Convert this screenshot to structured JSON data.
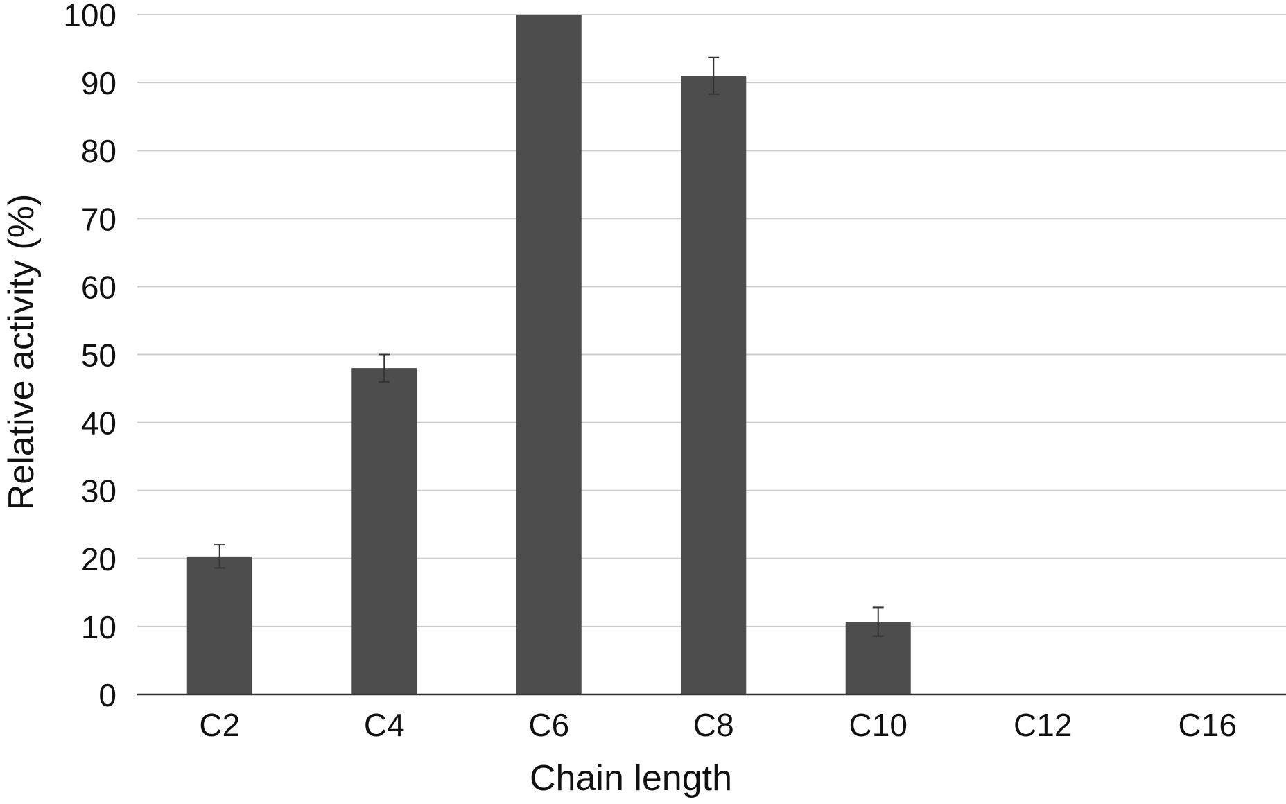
{
  "chart_data": {
    "type": "bar",
    "title": "",
    "xlabel": "Chain length",
    "ylabel": "Relative activity (%)",
    "categories": [
      "C2",
      "C4",
      "C6",
      "C8",
      "C10",
      "C12",
      "C16"
    ],
    "series": [
      {
        "values": [
          20.3,
          48,
          100,
          91,
          10.7,
          0,
          0
        ],
        "errors": [
          1.7,
          2,
          0,
          2.7,
          2.1,
          0,
          0
        ]
      }
    ],
    "ylim": [
      0,
      100
    ],
    "yticks": [
      0,
      10,
      20,
      30,
      40,
      50,
      60,
      70,
      80,
      90,
      100
    ],
    "grid": true,
    "legend": "none",
    "colors": {
      "bar": "#4d4d4d",
      "error_bar": "#333333",
      "grid": "#cccccc",
      "axis": "#333333"
    }
  }
}
